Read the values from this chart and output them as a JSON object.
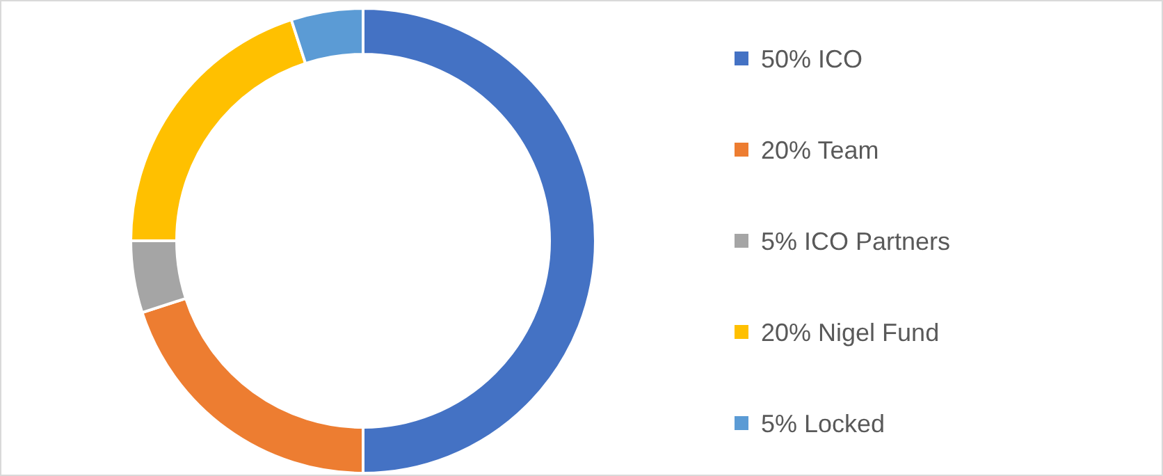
{
  "chart_data": {
    "type": "donut",
    "categories": [
      "50% ICO",
      "20% Team",
      "5% ICO Partners",
      "20% Nigel Fund",
      "5% Locked"
    ],
    "values": [
      50,
      20,
      5,
      20,
      5
    ],
    "colors": [
      "#4472c4",
      "#ed7d31",
      "#a5a5a5",
      "#ffc000",
      "#5b9bd5"
    ],
    "legend": "right"
  }
}
